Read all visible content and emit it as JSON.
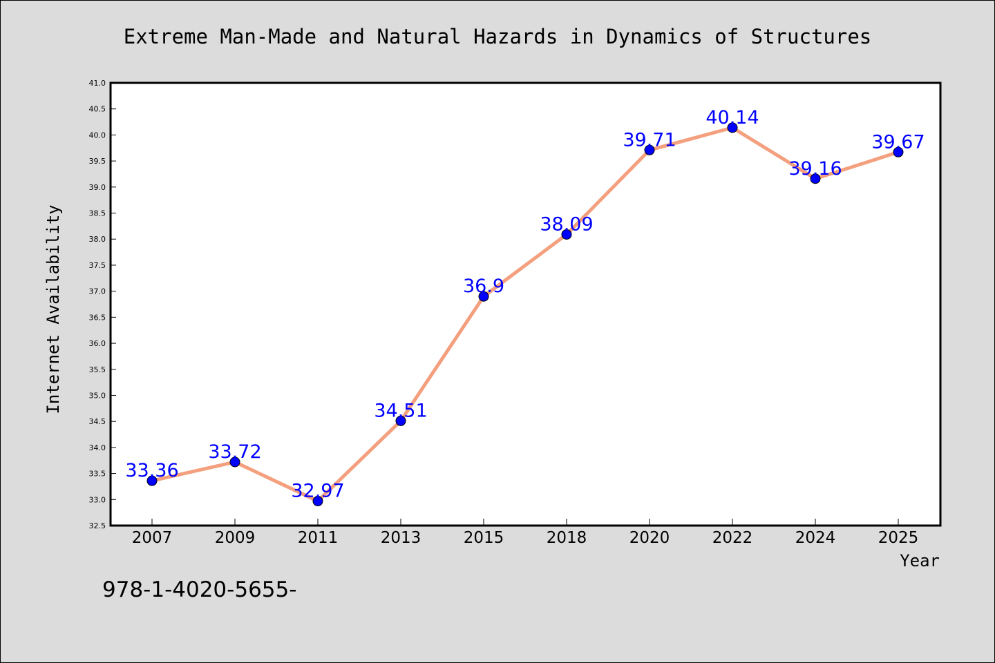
{
  "chart_data": {
    "type": "line",
    "title": "Extreme Man-Made and Natural Hazards in Dynamics of Structures",
    "xlabel": "Year",
    "ylabel": "Internet Availability",
    "categories": [
      "2007",
      "2009",
      "2011",
      "2013",
      "2015",
      "2018",
      "2020",
      "2022",
      "2024",
      "2025"
    ],
    "values": [
      33.36,
      33.72,
      32.97,
      34.51,
      36.9,
      38.09,
      39.71,
      40.14,
      39.16,
      39.67
    ],
    "data_labels": [
      "33.36",
      "33.72",
      "32.97",
      "34.51",
      "36.9",
      "38.09",
      "39.71",
      "40.14",
      "39.16",
      "39.67"
    ],
    "ylim": [
      32.5,
      41.0
    ],
    "yticks": [
      "32.5",
      "33.0",
      "33.5",
      "34.0",
      "34.5",
      "35.0",
      "35.5",
      "36.0",
      "36.5",
      "37.0",
      "37.5",
      "38.0",
      "38.5",
      "39.0",
      "39.5",
      "40.0",
      "40.5",
      "41.0"
    ],
    "grid": false,
    "line_color": "#f4a07e",
    "marker_color": "#0000ff",
    "label_color": "#0000ff",
    "plot_background": "#ffffff",
    "figure_background": "#dcdcdc"
  },
  "footer": {
    "text": "978-1-4020-5655-"
  }
}
